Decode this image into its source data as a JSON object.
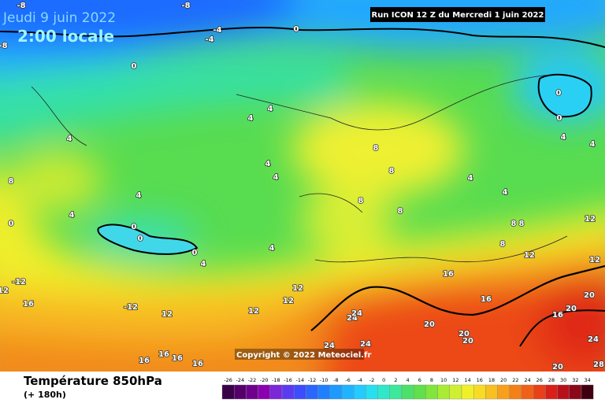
{
  "header": {
    "date": "Jeudi 9 juin 2022",
    "time": "2:00 locale",
    "run": "Run ICON 12 Z du Mercredi 1 juin 2022"
  },
  "copyright": "Copyright © 2022 Meteociel.fr",
  "footer": {
    "title": "Température 850hPa",
    "subtitle": "(+ 180h)"
  },
  "legend": {
    "ticks": [
      -26,
      -24,
      -22,
      -20,
      -18,
      -16,
      -14,
      -12,
      -10,
      -8,
      -6,
      -4,
      -2,
      0,
      2,
      4,
      6,
      8,
      10,
      12,
      14,
      16,
      18,
      20,
      22,
      24,
      26,
      28,
      30,
      32,
      34
    ],
    "colors": [
      "#3a0048",
      "#55006a",
      "#6e008c",
      "#8a00b0",
      "#7a28d8",
      "#5a3cf0",
      "#3c4cff",
      "#2a66ff",
      "#1e80ff",
      "#1c9aff",
      "#20b4ff",
      "#22ccff",
      "#26e0f0",
      "#2ee8c8",
      "#3ce89a",
      "#4ce06a",
      "#60e04a",
      "#80e63c",
      "#a8ec34",
      "#cff030",
      "#f0f028",
      "#f8dc24",
      "#f8c020",
      "#f8a01c",
      "#f48018",
      "#f06018",
      "#e84018",
      "#d82018",
      "#b8101a",
      "#8a0818",
      "#400010"
    ]
  },
  "map_labels": [
    -8,
    -8,
    -4,
    -4,
    -8,
    0,
    0,
    4,
    4,
    4,
    8,
    8,
    4,
    4,
    4,
    4,
    8,
    0,
    0,
    0,
    0,
    4,
    4,
    8,
    8,
    4,
    4,
    0,
    0,
    4,
    4,
    8,
    8,
    12,
    12,
    8,
    16,
    16,
    12,
    12,
    12,
    12,
    -12,
    16,
    -12,
    24,
    24,
    20,
    20,
    20,
    24,
    24,
    16,
    16,
    16,
    16,
    20,
    20,
    16,
    24,
    20,
    28,
    12,
    12
  ]
}
